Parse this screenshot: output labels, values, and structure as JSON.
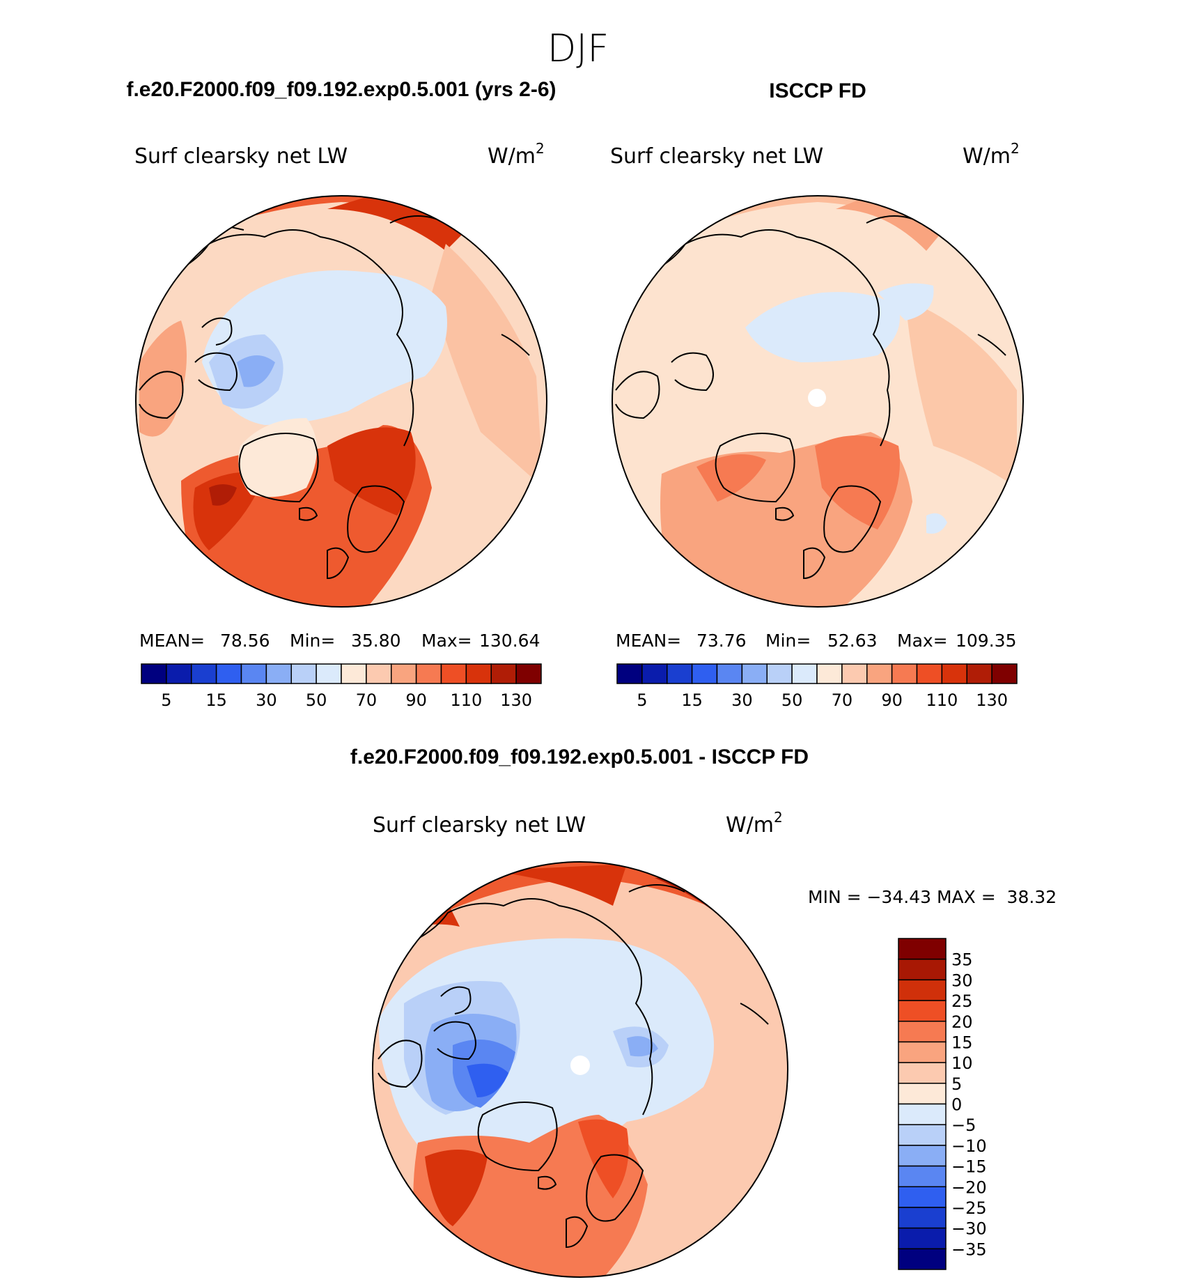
{
  "season": "DJF",
  "panels": [
    {
      "title": "f.e20.F2000.f09_f09.192.exp0.5.001 (yrs 2-6)",
      "variable": "Surf clearsky net LW",
      "units": "W/m",
      "units_sup": "2",
      "mean_label": "MEAN=",
      "mean": "78.56",
      "min_label": "Min=",
      "min": "35.80",
      "max_label": "Max=",
      "max": "130.64"
    },
    {
      "title": "ISCCP FD",
      "variable": "Surf clearsky net LW",
      "units": "W/m",
      "units_sup": "2",
      "mean_label": "MEAN=",
      "mean": "73.76",
      "min_label": "Min=",
      "min": "52.63",
      "max_label": "Max=",
      "max": "109.35"
    }
  ],
  "abs_colorbar": {
    "labels": [
      "5",
      "15",
      "30",
      "50",
      "70",
      "90",
      "110",
      "130"
    ],
    "colors": [
      "#00007f",
      "#0a1cac",
      "#1a3fd0",
      "#2f5ff0",
      "#5a86f2",
      "#8aaef5",
      "#b9d0f8",
      "#dbeafb",
      "#fde9d8",
      "#fccab0",
      "#f9a47f",
      "#f67a52",
      "#ee4f25",
      "#d8330b",
      "#b01d06",
      "#7f0000"
    ]
  },
  "diff_panel": {
    "title": "f.e20.F2000.f09_f09.192.exp0.5.001 - ISCCP FD",
    "variable": "Surf clearsky net LW",
    "units": "W/m",
    "units_sup": "2",
    "minmax_text": "MIN = −34.43 MAX =  38.32"
  },
  "diff_colorbar": {
    "labels": [
      "35",
      "30",
      "25",
      "20",
      "15",
      "10",
      "5",
      "0",
      "−5",
      "−10",
      "−15",
      "−20",
      "−25",
      "−30",
      "−35"
    ],
    "colors": [
      "#7f0000",
      "#a81804",
      "#d0300a",
      "#ee4f25",
      "#f67a52",
      "#f9a47f",
      "#fccab0",
      "#fde9d8",
      "#dbeafb",
      "#b9d0f8",
      "#8aaef5",
      "#5a86f2",
      "#2f5ff0",
      "#1a3fd0",
      "#0a1cac",
      "#00007f"
    ]
  },
  "chart_data": {
    "type": "polar-stereographic map",
    "field": "Surface clear-sky net longwave flux",
    "season": "DJF",
    "units": "W/m2",
    "model": {
      "name": "f.e20.F2000.f09_f09.192.exp0.5.001 (yrs 2-6)",
      "mean": 78.56,
      "min": 35.8,
      "max": 130.64
    },
    "observations": {
      "name": "ISCCP FD",
      "mean": 73.76,
      "min": 52.63,
      "max": 109.35
    },
    "difference": {
      "name": "f.e20.F2000.f09_f09.192.exp0.5.001 - ISCCP FD",
      "min": -34.43,
      "max": 38.32
    },
    "abs_contour_ticks": [
      5,
      15,
      30,
      50,
      70,
      90,
      110,
      130
    ],
    "diff_contour_levels": [
      35,
      30,
      25,
      20,
      15,
      10,
      5,
      0,
      -5,
      -10,
      -15,
      -20,
      -25,
      -30,
      -35
    ]
  }
}
